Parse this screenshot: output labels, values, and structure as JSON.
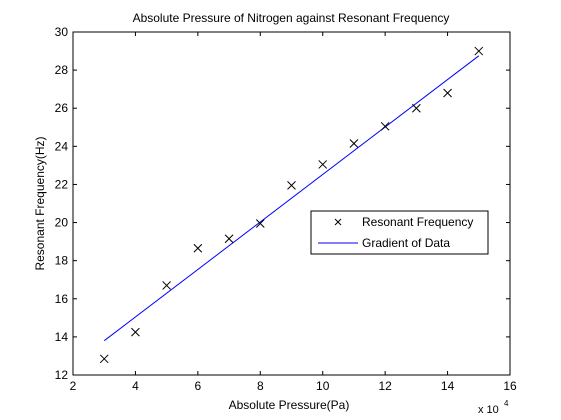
{
  "chart_data": {
    "type": "scatter",
    "title": "Absolute Pressure of Nitrogen against Resonant Frequency",
    "xlabel": "Absolute Pressure(Pa)",
    "ylabel": "Resonant Frequency(Hz)",
    "x_multiplier_base": "x 10",
    "x_multiplier_exponent": "4",
    "xlim": [
      2,
      16
    ],
    "ylim": [
      12,
      30
    ],
    "xticks": [
      2,
      4,
      6,
      8,
      10,
      12,
      14,
      16
    ],
    "yticks": [
      12,
      14,
      16,
      18,
      20,
      22,
      24,
      26,
      28,
      30
    ],
    "grid": false,
    "legend_position": "right",
    "series": [
      {
        "name": "Resonant Frequency",
        "marker": "x",
        "color": "#000000",
        "x": [
          3,
          4,
          5,
          6,
          7,
          8,
          9,
          10,
          11,
          12,
          13,
          14,
          15
        ],
        "y": [
          12.85,
          14.25,
          16.7,
          18.65,
          19.15,
          19.95,
          21.95,
          23.05,
          24.15,
          25.05,
          26.0,
          26.8,
          29.0
        ]
      },
      {
        "name": "Gradient of Data",
        "marker": "line",
        "color": "#0000ff",
        "x": [
          3,
          15
        ],
        "y": [
          13.8,
          28.75
        ]
      }
    ]
  }
}
